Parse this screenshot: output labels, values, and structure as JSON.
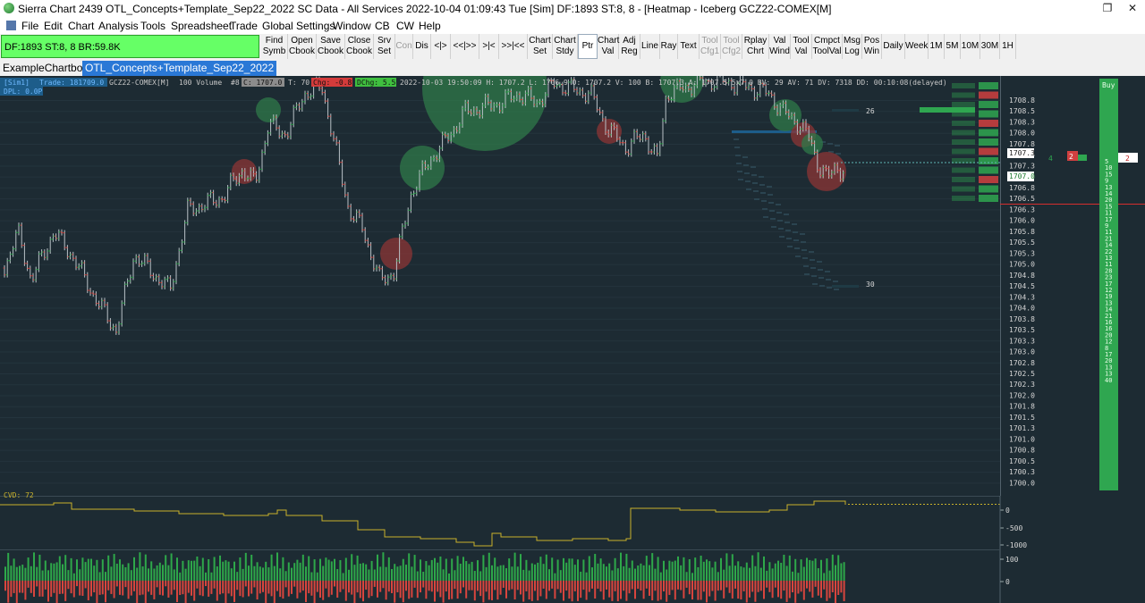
{
  "window": {
    "title": "Sierra Chart 2439 OTL_Concepts+Template_Sep22_2022  SC Data - All Services 2022-10-04  01:09:43 Tue [Sim]  DF:1893  ST:8, 8  - [Heatmap - Iceberg GCZ22-COMEX[M]",
    "restore_label": "❐",
    "close_label": "✕"
  },
  "menu": [
    "File",
    "Edit",
    "Chart",
    "Analysis",
    "Tools",
    "Spreadsheet",
    "Trade",
    "Global Settings",
    "Window",
    "CB",
    "CW",
    "Help"
  ],
  "status_box": "DF:1893  ST:8, 8  BR:59.8K",
  "toolbar": [
    {
      "l1": "Find",
      "l2": "Symb",
      "dim": false
    },
    {
      "l1": "Open",
      "l2": "Cbook",
      "dim": false
    },
    {
      "l1": "Save",
      "l2": "Cbook",
      "dim": false
    },
    {
      "l1": "Close",
      "l2": "Cbook",
      "dim": false
    },
    {
      "l1": "Srv",
      "l2": "Set",
      "dim": false
    },
    {
      "l1": "Con",
      "l2": "",
      "dim": true
    },
    {
      "l1": "Dis",
      "l2": "",
      "dim": false
    },
    {
      "l1": "<|>",
      "l2": "",
      "dim": false
    },
    {
      "l1": "<<|>>",
      "l2": "",
      "dim": false
    },
    {
      "l1": ">|<",
      "l2": "",
      "dim": false
    },
    {
      "l1": ">>|<<",
      "l2": "",
      "dim": false
    },
    {
      "l1": "Chart",
      "l2": "Set",
      "dim": false
    },
    {
      "l1": "Chart",
      "l2": "Stdy",
      "dim": false
    },
    {
      "l1": "Ptr",
      "l2": "",
      "dim": false,
      "sel": true
    },
    {
      "l1": "Chart",
      "l2": "Val",
      "dim": false
    },
    {
      "l1": "Adj",
      "l2": "Reg",
      "dim": false
    },
    {
      "l1": "Line",
      "l2": "",
      "dim": false
    },
    {
      "l1": "Ray",
      "l2": "",
      "dim": false
    },
    {
      "l1": "Text",
      "l2": "",
      "dim": false
    },
    {
      "l1": "Tool",
      "l2": "Cfg1",
      "dim": true
    },
    {
      "l1": "Tool",
      "l2": "Cfg2",
      "dim": true
    },
    {
      "l1": "Rplay",
      "l2": "Chrt",
      "dim": false
    },
    {
      "l1": "Val",
      "l2": "Wind",
      "dim": false
    },
    {
      "l1": "Tool",
      "l2": "Val",
      "dim": false
    },
    {
      "l1": "Cmpct",
      "l2": "ToolVal",
      "dim": false
    },
    {
      "l1": "Msg",
      "l2": "Log",
      "dim": false
    },
    {
      "l1": "Pos",
      "l2": "Win",
      "dim": false
    },
    {
      "l1": "Daily",
      "l2": "",
      "dim": false
    },
    {
      "l1": "Week",
      "l2": "",
      "dim": false
    },
    {
      "l1": "1M",
      "l2": "",
      "dim": false
    },
    {
      "l1": "5M",
      "l2": "",
      "dim": false
    },
    {
      "l1": "10M",
      "l2": "",
      "dim": false
    },
    {
      "l1": "30M",
      "l2": "",
      "dim": false
    },
    {
      "l1": "1H",
      "l2": "",
      "dim": false
    }
  ],
  "tabs": [
    "ExampleChartbook",
    "OTL_Concepts+Template_Sep22_2022"
  ],
  "chart": {
    "header": {
      "sim": "[Sim1]",
      "trade": "Trade: 181709.0",
      "symbol": "GCZ22-COMEX[M]",
      "volume": "100 Volume",
      "chartnum": "#8",
      "close": "C: 1707.0",
      "t": "T: 70",
      "chg": "Chg: -0.8",
      "dchg": "DChg: 5.5",
      "rest": "2022-10-03 19:50:09 H: 1707.2 L: 1706.9 O: 1707.2 V: 100 B: 1707.3 A: 1707.5 5x7 0 BV: 29 AV: 71 DV: 7318 DD: 00:10:08(delayed)"
    },
    "dpl": "DPL: 0.0P",
    "cvd_label": "CVD: 72",
    "price_labels": [
      "1708.8",
      "1708.5",
      "1708.3",
      "1708.0",
      "1707.8",
      "1707.5",
      "1707.3",
      "1707.0",
      "1706.8",
      "1706.5",
      "1706.3",
      "1706.0",
      "1705.8",
      "1705.5",
      "1705.3",
      "1705.0",
      "1704.8",
      "1704.5",
      "1704.3",
      "1704.0",
      "1703.8",
      "1703.5",
      "1703.3",
      "1703.0",
      "1702.8",
      "1702.5",
      "1702.3",
      "1702.0",
      "1701.8",
      "1701.5",
      "1701.3",
      "1701.0",
      "1700.8",
      "1700.5",
      "1700.3",
      "1700.0"
    ],
    "cvd_labels": [
      "0",
      "-500",
      "-1000"
    ],
    "vol_labels": [
      "100",
      "0"
    ],
    "heatmap_labels": [
      "26",
      "30"
    ],
    "dom_marker_left": "2",
    "dom_marker_right": "2",
    "dom_side_num": "4",
    "buy_label": "Buy",
    "buy_values": [
      "5",
      "10",
      "15",
      "9",
      "13",
      "14",
      "20",
      "15",
      "11",
      "17",
      "9",
      "11",
      "21",
      "14",
      "22",
      "13",
      "11",
      "28",
      "23",
      "17",
      "12",
      "19",
      "13",
      "14",
      "21",
      "16",
      "16",
      "20",
      "12",
      "8",
      "17",
      "20",
      "13",
      "13",
      "40"
    ],
    "colors": {
      "bg": "#1d2b33",
      "up": "#2ea84a",
      "down": "#d8453e",
      "cvd": "#c9b22b",
      "price_axis_text": "#d6d6d6",
      "red_line": "#d62e2e",
      "buy_col": "#2fa650"
    }
  }
}
